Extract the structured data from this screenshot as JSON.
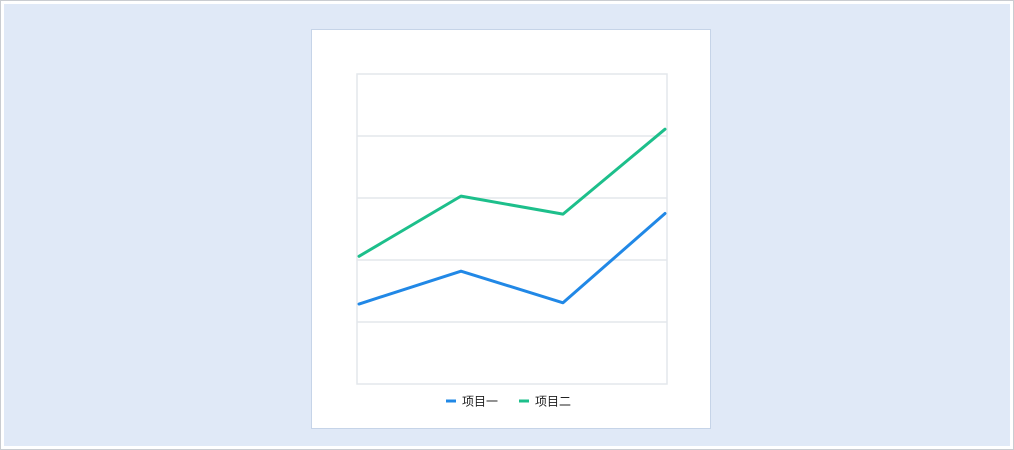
{
  "chart_data": {
    "type": "line",
    "categories": [
      "",
      "",
      "",
      ""
    ],
    "ylim": [
      0,
      5
    ],
    "grid": true,
    "legend_position": "bottom",
    "series": [
      {
        "name": "项目一",
        "color": "#2188e6",
        "values": [
          1.29,
          1.82,
          1.31,
          2.75
        ]
      },
      {
        "name": "项目二",
        "color": "#1dbf8b",
        "values": [
          2.06,
          3.03,
          2.74,
          4.11
        ]
      }
    ]
  }
}
